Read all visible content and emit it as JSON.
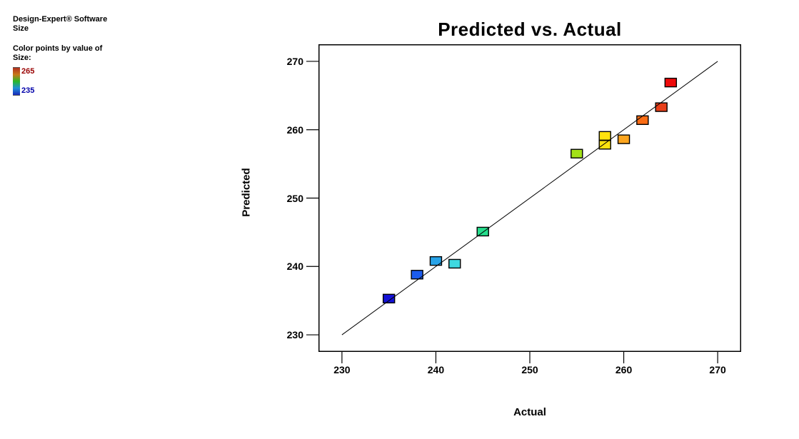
{
  "window": {
    "background": "#FFFFFF"
  },
  "legend": {
    "software_line1": "Design-Expert® Software",
    "software_line2": "Size",
    "color_note_line1": "Color points by value of",
    "color_note_line2": "Size:",
    "scale": {
      "max_label": "265",
      "min_label": "235",
      "max_label_color": "#990000",
      "min_label_color": "#0000AA",
      "gradient": [
        "#B03020",
        "#C87818",
        "#28B828",
        "#2090D8",
        "#1828B8"
      ]
    }
  },
  "chart_data": {
    "type": "scatter",
    "title": "Predicted vs. Actual",
    "xlabel": "Actual",
    "ylabel": "Predicted",
    "xlim": [
      227.5,
      272.5
    ],
    "ylim": [
      227.5,
      272.5
    ],
    "xticks": [
      230,
      240,
      250,
      260,
      270
    ],
    "yticks": [
      230,
      240,
      250,
      260,
      270
    ],
    "grid": false,
    "legend_position": "top-left-outside",
    "marker": {
      "shape": "square",
      "width": 16,
      "height": 12,
      "stroke": "#000000"
    },
    "reference_line": {
      "x1": 230,
      "y1": 230,
      "x2": 270,
      "y2": 270,
      "color": "#000000"
    },
    "points": [
      {
        "actual": 235,
        "predicted": 235.3,
        "color": "#1412D6"
      },
      {
        "actual": 238,
        "predicted": 238.8,
        "color": "#1C5CEE"
      },
      {
        "actual": 240,
        "predicted": 240.8,
        "color": "#28A3E8"
      },
      {
        "actual": 242,
        "predicted": 240.4,
        "color": "#3FD9E0"
      },
      {
        "actual": 245,
        "predicted": 245.1,
        "color": "#25DF8D"
      },
      {
        "actual": 255,
        "predicted": 256.5,
        "color": "#A3E118"
      },
      {
        "actual": 258,
        "predicted": 259.1,
        "color": "#FFE30E"
      },
      {
        "actual": 258,
        "predicted": 257.8,
        "color": "#FFE30E"
      },
      {
        "actual": 260,
        "predicted": 258.6,
        "color": "#FCA51E"
      },
      {
        "actual": 262,
        "predicted": 261.4,
        "color": "#FA6C14"
      },
      {
        "actual": 264,
        "predicted": 263.3,
        "color": "#E83F1A"
      },
      {
        "actual": 265,
        "predicted": 266.9,
        "color": "#EE0A0A"
      }
    ]
  }
}
